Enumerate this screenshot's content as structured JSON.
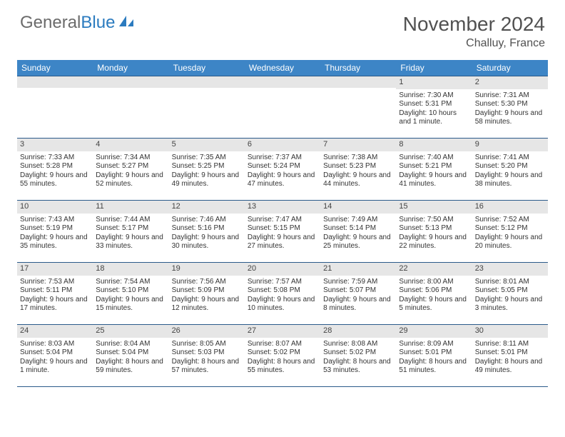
{
  "logo": {
    "part1": "General",
    "part2": "Blue"
  },
  "header": {
    "title": "November 2024",
    "location": "Challuy, France"
  },
  "colors": {
    "header_bg": "#3d85c6",
    "header_text": "#ffffff",
    "daynum_bg": "#e6e6e6",
    "border": "#2b5a8a",
    "title_color": "#515151",
    "body_text": "#333333"
  },
  "daynames": [
    "Sunday",
    "Monday",
    "Tuesday",
    "Wednesday",
    "Thursday",
    "Friday",
    "Saturday"
  ],
  "weeks": [
    [
      {
        "n": "",
        "sr": "",
        "ss": "",
        "dl": ""
      },
      {
        "n": "",
        "sr": "",
        "ss": "",
        "dl": ""
      },
      {
        "n": "",
        "sr": "",
        "ss": "",
        "dl": ""
      },
      {
        "n": "",
        "sr": "",
        "ss": "",
        "dl": ""
      },
      {
        "n": "",
        "sr": "",
        "ss": "",
        "dl": ""
      },
      {
        "n": "1",
        "sr": "Sunrise: 7:30 AM",
        "ss": "Sunset: 5:31 PM",
        "dl": "Daylight: 10 hours and 1 minute."
      },
      {
        "n": "2",
        "sr": "Sunrise: 7:31 AM",
        "ss": "Sunset: 5:30 PM",
        "dl": "Daylight: 9 hours and 58 minutes."
      }
    ],
    [
      {
        "n": "3",
        "sr": "Sunrise: 7:33 AM",
        "ss": "Sunset: 5:28 PM",
        "dl": "Daylight: 9 hours and 55 minutes."
      },
      {
        "n": "4",
        "sr": "Sunrise: 7:34 AM",
        "ss": "Sunset: 5:27 PM",
        "dl": "Daylight: 9 hours and 52 minutes."
      },
      {
        "n": "5",
        "sr": "Sunrise: 7:35 AM",
        "ss": "Sunset: 5:25 PM",
        "dl": "Daylight: 9 hours and 49 minutes."
      },
      {
        "n": "6",
        "sr": "Sunrise: 7:37 AM",
        "ss": "Sunset: 5:24 PM",
        "dl": "Daylight: 9 hours and 47 minutes."
      },
      {
        "n": "7",
        "sr": "Sunrise: 7:38 AM",
        "ss": "Sunset: 5:23 PM",
        "dl": "Daylight: 9 hours and 44 minutes."
      },
      {
        "n": "8",
        "sr": "Sunrise: 7:40 AM",
        "ss": "Sunset: 5:21 PM",
        "dl": "Daylight: 9 hours and 41 minutes."
      },
      {
        "n": "9",
        "sr": "Sunrise: 7:41 AM",
        "ss": "Sunset: 5:20 PM",
        "dl": "Daylight: 9 hours and 38 minutes."
      }
    ],
    [
      {
        "n": "10",
        "sr": "Sunrise: 7:43 AM",
        "ss": "Sunset: 5:19 PM",
        "dl": "Daylight: 9 hours and 35 minutes."
      },
      {
        "n": "11",
        "sr": "Sunrise: 7:44 AM",
        "ss": "Sunset: 5:17 PM",
        "dl": "Daylight: 9 hours and 33 minutes."
      },
      {
        "n": "12",
        "sr": "Sunrise: 7:46 AM",
        "ss": "Sunset: 5:16 PM",
        "dl": "Daylight: 9 hours and 30 minutes."
      },
      {
        "n": "13",
        "sr": "Sunrise: 7:47 AM",
        "ss": "Sunset: 5:15 PM",
        "dl": "Daylight: 9 hours and 27 minutes."
      },
      {
        "n": "14",
        "sr": "Sunrise: 7:49 AM",
        "ss": "Sunset: 5:14 PM",
        "dl": "Daylight: 9 hours and 25 minutes."
      },
      {
        "n": "15",
        "sr": "Sunrise: 7:50 AM",
        "ss": "Sunset: 5:13 PM",
        "dl": "Daylight: 9 hours and 22 minutes."
      },
      {
        "n": "16",
        "sr": "Sunrise: 7:52 AM",
        "ss": "Sunset: 5:12 PM",
        "dl": "Daylight: 9 hours and 20 minutes."
      }
    ],
    [
      {
        "n": "17",
        "sr": "Sunrise: 7:53 AM",
        "ss": "Sunset: 5:11 PM",
        "dl": "Daylight: 9 hours and 17 minutes."
      },
      {
        "n": "18",
        "sr": "Sunrise: 7:54 AM",
        "ss": "Sunset: 5:10 PM",
        "dl": "Daylight: 9 hours and 15 minutes."
      },
      {
        "n": "19",
        "sr": "Sunrise: 7:56 AM",
        "ss": "Sunset: 5:09 PM",
        "dl": "Daylight: 9 hours and 12 minutes."
      },
      {
        "n": "20",
        "sr": "Sunrise: 7:57 AM",
        "ss": "Sunset: 5:08 PM",
        "dl": "Daylight: 9 hours and 10 minutes."
      },
      {
        "n": "21",
        "sr": "Sunrise: 7:59 AM",
        "ss": "Sunset: 5:07 PM",
        "dl": "Daylight: 9 hours and 8 minutes."
      },
      {
        "n": "22",
        "sr": "Sunrise: 8:00 AM",
        "ss": "Sunset: 5:06 PM",
        "dl": "Daylight: 9 hours and 5 minutes."
      },
      {
        "n": "23",
        "sr": "Sunrise: 8:01 AM",
        "ss": "Sunset: 5:05 PM",
        "dl": "Daylight: 9 hours and 3 minutes."
      }
    ],
    [
      {
        "n": "24",
        "sr": "Sunrise: 8:03 AM",
        "ss": "Sunset: 5:04 PM",
        "dl": "Daylight: 9 hours and 1 minute."
      },
      {
        "n": "25",
        "sr": "Sunrise: 8:04 AM",
        "ss": "Sunset: 5:04 PM",
        "dl": "Daylight: 8 hours and 59 minutes."
      },
      {
        "n": "26",
        "sr": "Sunrise: 8:05 AM",
        "ss": "Sunset: 5:03 PM",
        "dl": "Daylight: 8 hours and 57 minutes."
      },
      {
        "n": "27",
        "sr": "Sunrise: 8:07 AM",
        "ss": "Sunset: 5:02 PM",
        "dl": "Daylight: 8 hours and 55 minutes."
      },
      {
        "n": "28",
        "sr": "Sunrise: 8:08 AM",
        "ss": "Sunset: 5:02 PM",
        "dl": "Daylight: 8 hours and 53 minutes."
      },
      {
        "n": "29",
        "sr": "Sunrise: 8:09 AM",
        "ss": "Sunset: 5:01 PM",
        "dl": "Daylight: 8 hours and 51 minutes."
      },
      {
        "n": "30",
        "sr": "Sunrise: 8:11 AM",
        "ss": "Sunset: 5:01 PM",
        "dl": "Daylight: 8 hours and 49 minutes."
      }
    ]
  ]
}
